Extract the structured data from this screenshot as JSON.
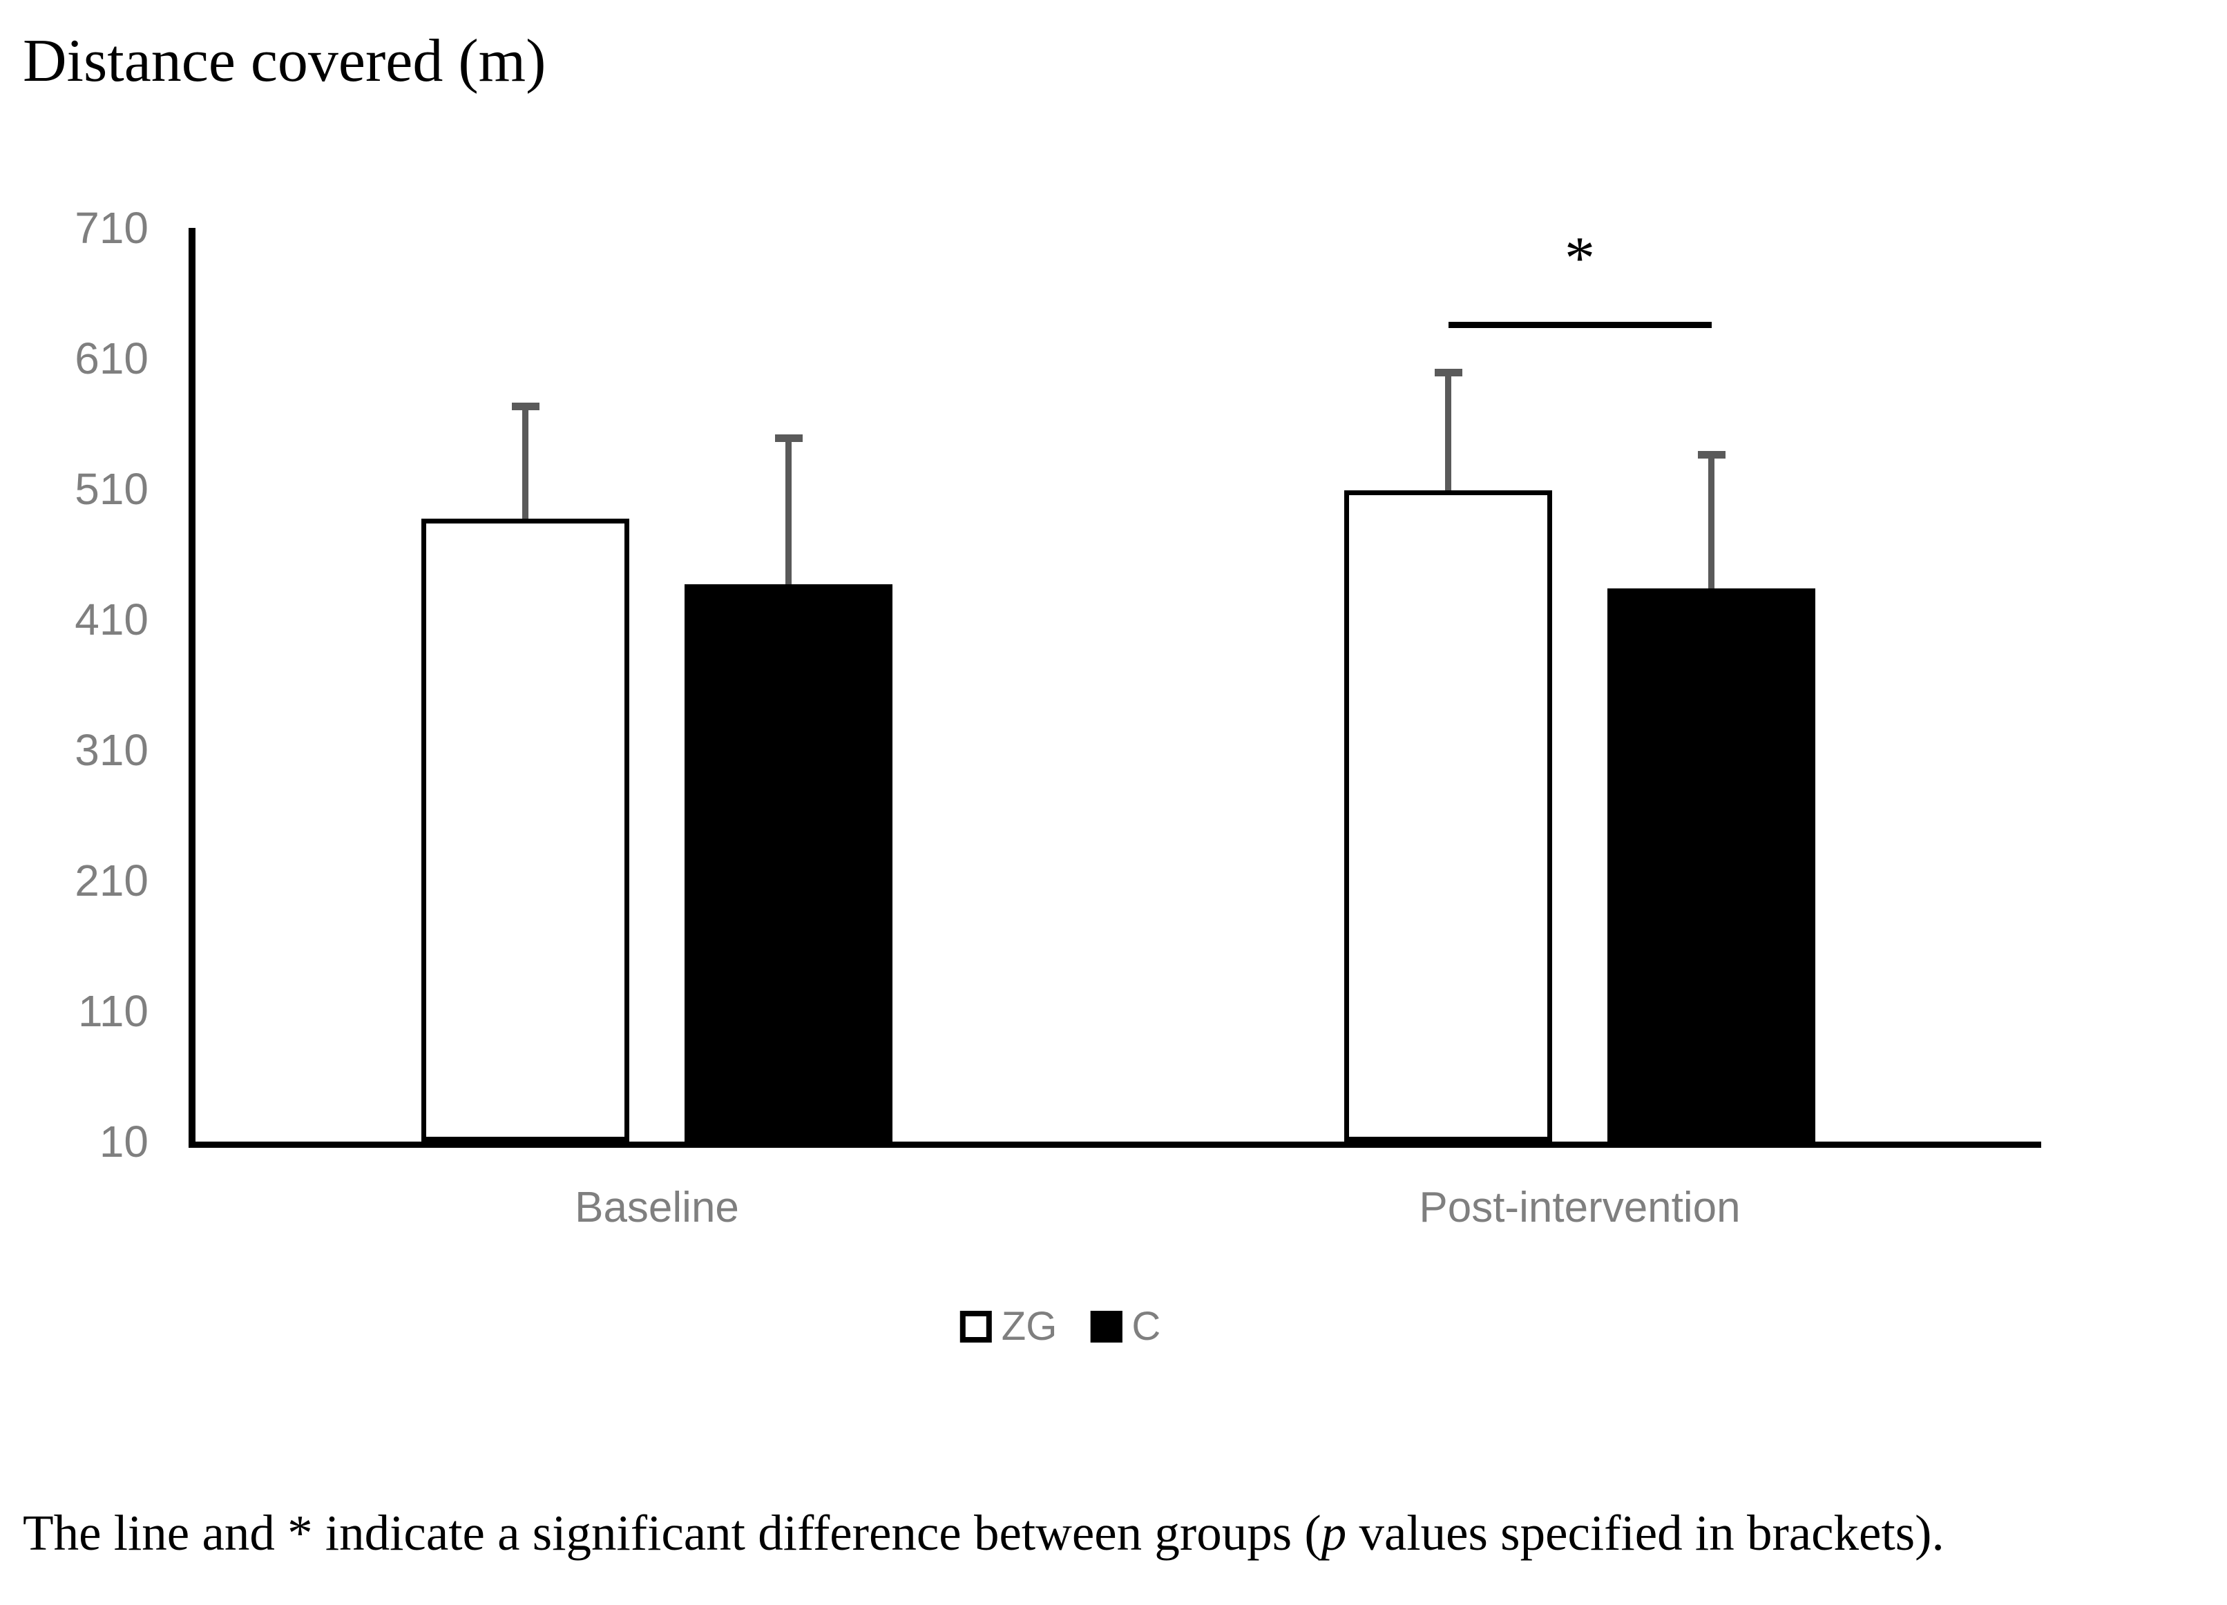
{
  "figure": {
    "caption": {
      "prefix": "The line and * indicate a significant difference between groups (",
      "italic": "p",
      "suffix": " values specified in brackets)."
    }
  },
  "colors": {
    "text_gray": "#7f7f7f",
    "error_bar": "#5a5a5a",
    "black": "#000000",
    "background": "#ffffff"
  },
  "chart_data": {
    "type": "bar",
    "title": "Distance covered (m)",
    "xlabel": "",
    "ylabel": "Distance covered (m)",
    "categories": [
      "Baseline",
      "Post-intervention"
    ],
    "series": [
      {
        "name": "ZG",
        "fill": "#ffffff",
        "values": [
          487,
          509
        ],
        "errors": [
          88,
          92
        ]
      },
      {
        "name": "C",
        "fill": "#000000",
        "values": [
          437,
          434
        ],
        "errors": [
          114,
          104
        ]
      }
    ],
    "ylim": [
      10,
      710
    ],
    "yticks": [
      10,
      110,
      210,
      310,
      410,
      510,
      610,
      710
    ],
    "grid": false,
    "legend_position": "bottom",
    "significance": {
      "symbol": "*",
      "category": "Post-intervention",
      "between": [
        "ZG",
        "C"
      ],
      "line_y_value": 638
    }
  }
}
